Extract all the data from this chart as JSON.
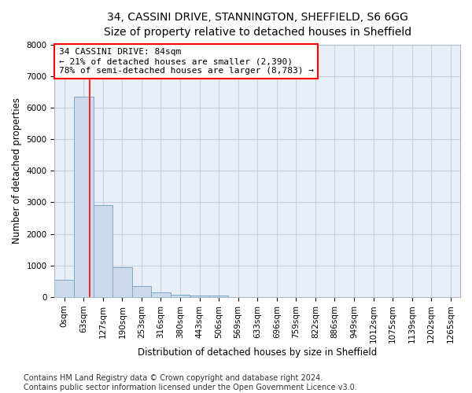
{
  "title_line1": "34, CASSINI DRIVE, STANNINGTON, SHEFFIELD, S6 6GG",
  "title_line2": "Size of property relative to detached houses in Sheffield",
  "xlabel": "Distribution of detached houses by size in Sheffield",
  "ylabel": "Number of detached properties",
  "categories": [
    "0sqm",
    "63sqm",
    "127sqm",
    "190sqm",
    "253sqm",
    "316sqm",
    "380sqm",
    "443sqm",
    "506sqm",
    "569sqm",
    "633sqm",
    "696sqm",
    "759sqm",
    "822sqm",
    "886sqm",
    "949sqm",
    "1012sqm",
    "1075sqm",
    "1139sqm",
    "1202sqm",
    "1265sqm"
  ],
  "values": [
    550,
    6350,
    2900,
    950,
    340,
    155,
    80,
    50,
    40,
    0,
    0,
    0,
    0,
    0,
    0,
    0,
    0,
    0,
    0,
    0,
    0
  ],
  "bar_color": "#ccdaeb",
  "bar_edge_color": "#7aaac8",
  "grid_color": "#c8d4e3",
  "background_color": "#e8eef6",
  "annotation_line1": "34 CASSINI DRIVE: 84sqm",
  "annotation_line2": "← 21% of detached houses are smaller (2,390)",
  "annotation_line3": "78% of semi-detached houses are larger (8,783) →",
  "annotation_box_color": "white",
  "annotation_box_edge_color": "red",
  "ylim": [
    0,
    8000
  ],
  "yticks": [
    0,
    1000,
    2000,
    3000,
    4000,
    5000,
    6000,
    7000,
    8000
  ],
  "footer_line1": "Contains HM Land Registry data © Crown copyright and database right 2024.",
  "footer_line2": "Contains public sector information licensed under the Open Government Licence v3.0.",
  "title_fontsize": 10,
  "subtitle_fontsize": 9,
  "axis_label_fontsize": 8.5,
  "tick_fontsize": 7.5,
  "annotation_fontsize": 8,
  "footer_fontsize": 7
}
